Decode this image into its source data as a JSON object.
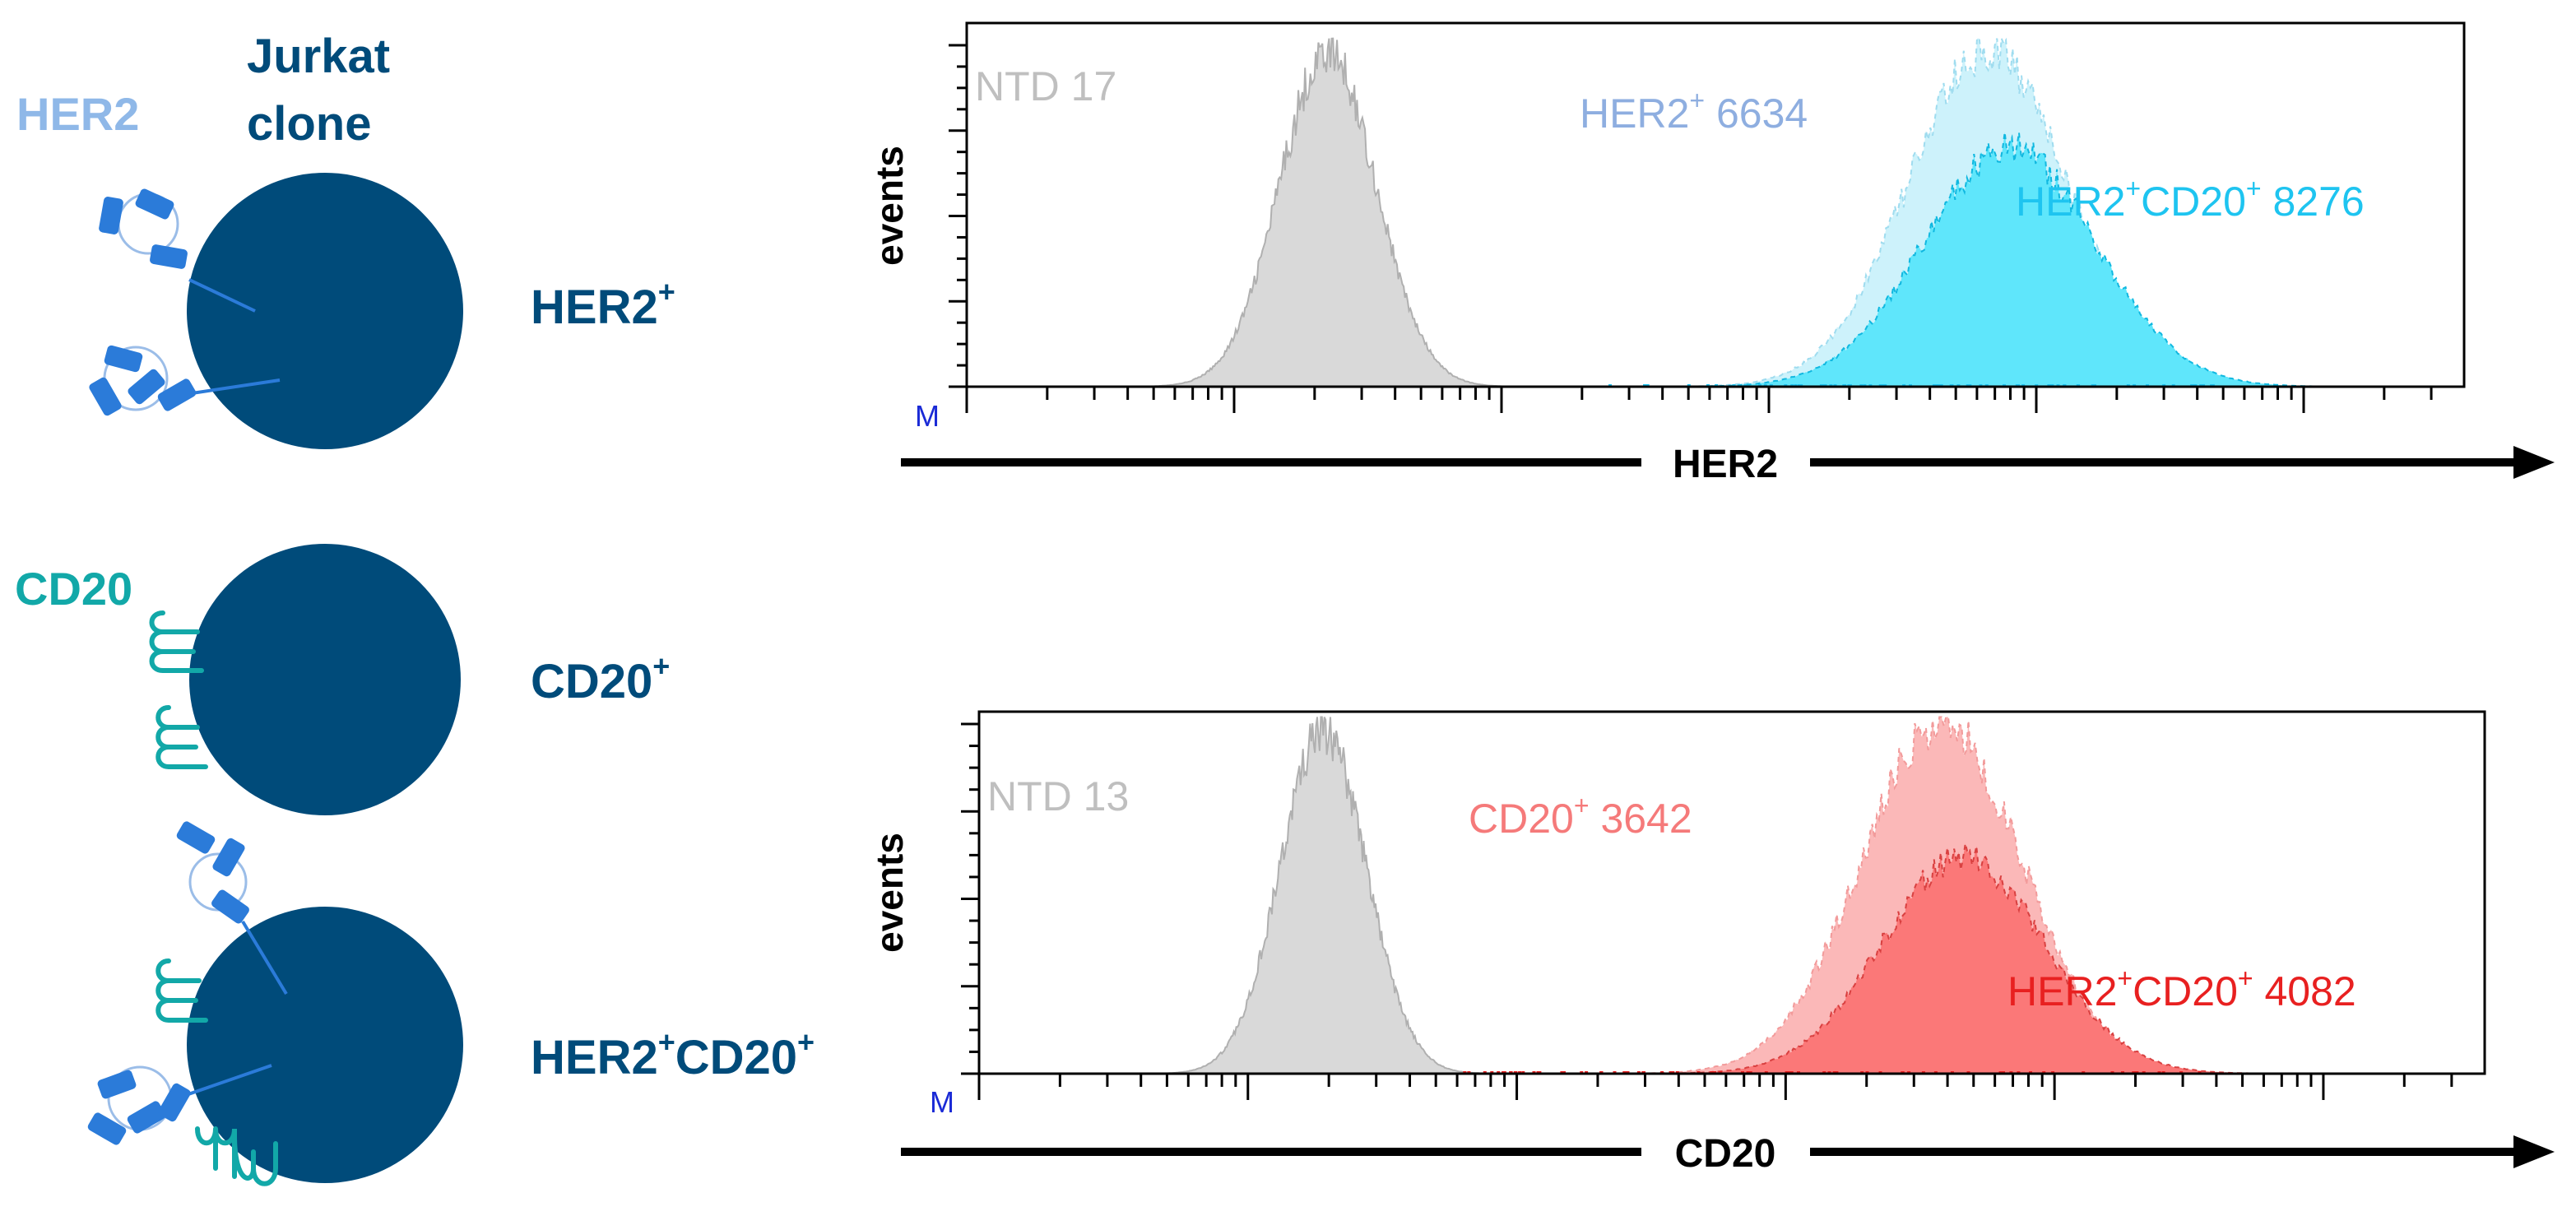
{
  "schematic": {
    "title_line1": "Jurkat",
    "title_line2": "clone",
    "her2_label": "HER2",
    "cd20_label": "CD20",
    "rows": [
      {
        "name": "HER2",
        "sup": "+",
        "sup2": ""
      },
      {
        "name": "CD20",
        "sup": "+",
        "sup2": ""
      },
      {
        "name": "HER2",
        "sup": "+",
        "name2": "CD20",
        "sup2": "+"
      }
    ]
  },
  "colors": {
    "navy": "#004b7a",
    "her2_blue": "#2b7bd9",
    "her2_label": "#8fb8e8",
    "cd20_teal": "#12a8a8",
    "ntd_fill": "#d9d9d9",
    "ntd_text": "#bfbfbf",
    "her2_fill_light": "#cdf2fb",
    "her2_fill_dark": "#5fe6fb",
    "her2_text_light": "#8eaee0",
    "her2_text_dark": "#1ec4f0",
    "cd20_fill_light": "#fbb8b8",
    "cd20_fill_dark": "#fb7878",
    "cd20_text_light": "#f57a7a",
    "cd20_text_dark": "#e82020"
  },
  "chart_data": [
    {
      "type": "area",
      "title": "",
      "xlabel": "HER2",
      "ylabel": "events",
      "x_scale": "log",
      "axis_marker": "M",
      "series": [
        {
          "name": "NTD",
          "value": 17,
          "label": "NTD",
          "center_decade": 1.35,
          "width": 0.18
        },
        {
          "name": "HER2+",
          "value": 6634,
          "label": "HER2",
          "sup": "+",
          "center_decade": 3.82,
          "width": 0.3,
          "height": 0.98
        },
        {
          "name": "HER2+CD20+",
          "value": 8276,
          "label": "HER2",
          "sup": "+",
          "label2": "CD20",
          "sup2": "+",
          "center_decade": 3.9,
          "width": 0.32,
          "height": 0.7
        }
      ]
    },
    {
      "type": "area",
      "title": "",
      "xlabel": "CD20",
      "ylabel": "events",
      "x_scale": "log",
      "axis_marker": "M",
      "series": [
        {
          "name": "NTD",
          "value": 13,
          "label": "NTD",
          "center_decade": 1.28,
          "width": 0.16
        },
        {
          "name": "CD20+",
          "value": 3642,
          "label": "CD20",
          "sup": "+",
          "center_decade": 3.58,
          "width": 0.3,
          "height": 1.0
        },
        {
          "name": "HER2+CD20+",
          "value": 4082,
          "label": "HER2",
          "sup": "+",
          "label2": "CD20",
          "sup2": "+",
          "center_decade": 3.66,
          "width": 0.3,
          "height": 0.62
        }
      ]
    }
  ]
}
